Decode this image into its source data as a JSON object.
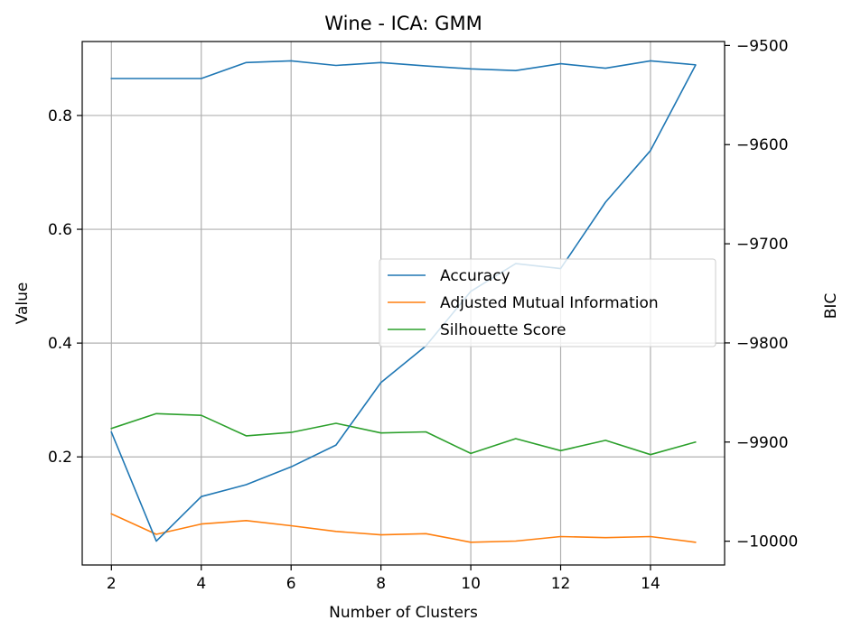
{
  "chart_data": {
    "type": "line",
    "title": "Wine - ICA: GMM",
    "xlabel": "Number of Clusters",
    "ylabel": "Value",
    "y2label": "BIC",
    "x": [
      2,
      3,
      4,
      5,
      6,
      7,
      8,
      9,
      10,
      11,
      12,
      13,
      14,
      15
    ],
    "xticks": [
      2,
      4,
      6,
      8,
      10,
      12,
      14
    ],
    "xlim": [
      1.35,
      15.65
    ],
    "ylim": [
      0.01,
      0.93
    ],
    "yticks": [
      0.2,
      0.4,
      0.6,
      0.8
    ],
    "y2lim": [
      -10024,
      -9496
    ],
    "y2ticks": [
      -10000,
      -9900,
      -9800,
      -9700,
      -9600,
      -9500
    ],
    "grid": true,
    "legend_position": "center-right",
    "series": [
      {
        "name": "Accuracy",
        "axis": "left",
        "color": "#1f77b4",
        "values": [
          0.865,
          0.865,
          0.865,
          0.893,
          0.896,
          0.888,
          0.893,
          0.887,
          0.882,
          0.879,
          0.891,
          0.883,
          0.896,
          0.889
        ]
      },
      {
        "name": "Adjusted Mutual Information",
        "axis": "left",
        "color": "#ff7f0e",
        "values": [
          0.1,
          0.064,
          0.082,
          0.088,
          0.079,
          0.069,
          0.063,
          0.065,
          0.05,
          0.052,
          0.06,
          0.058,
          0.06,
          0.05
        ]
      },
      {
        "name": "Silhouette Score",
        "axis": "left",
        "color": "#2ca02c",
        "values": [
          0.25,
          0.276,
          0.273,
          0.237,
          0.243,
          0.259,
          0.242,
          0.244,
          0.206,
          0.232,
          0.211,
          0.229,
          0.204,
          0.226
        ]
      },
      {
        "name": "BIC",
        "axis": "right",
        "color": "#1f77b4",
        "values": [
          -9890,
          -10000,
          -9955,
          -9943,
          -9925,
          -9903,
          -9840,
          -9803,
          -9748,
          -9720,
          -9725,
          -9658,
          -9606,
          -9520
        ]
      }
    ]
  }
}
